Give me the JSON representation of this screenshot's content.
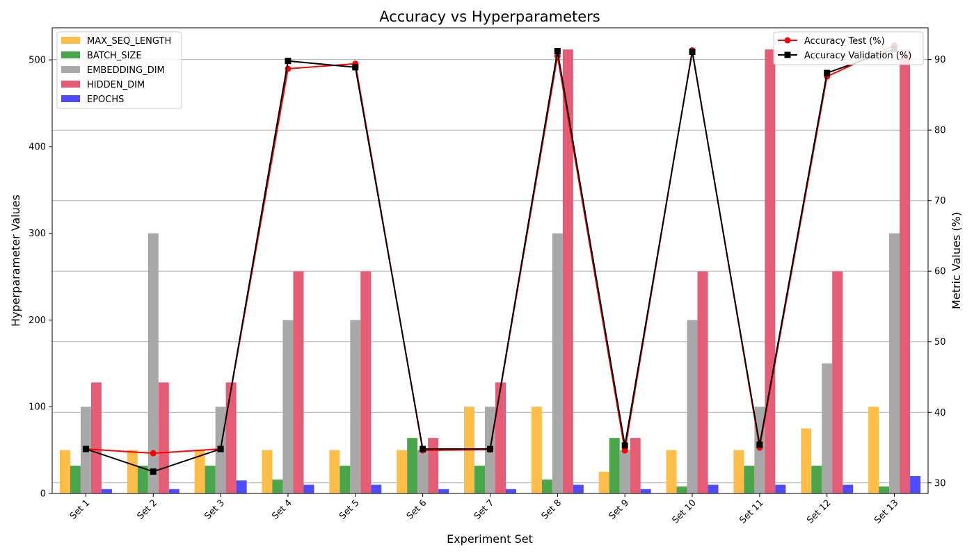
{
  "chart_data": {
    "type": "bar",
    "title": "Accuracy vs Hyperparameters",
    "xlabel": "Experiment Set",
    "ylabel_left": "Hyperparameter Values",
    "ylabel_right": "Metric Values (%)",
    "categories": [
      "Set 1",
      "Set 2",
      "Set 3",
      "Set 4",
      "Set 5",
      "Set 6",
      "Set 7",
      "Set 8",
      "Set 9",
      "Set 10",
      "Set 11",
      "Set 12",
      "Set 13"
    ],
    "ylim_left": [
      0,
      537
    ],
    "ylim_right": [
      28.5,
      94.5
    ],
    "yticks_left": [
      0,
      100,
      200,
      300,
      400,
      500
    ],
    "yticks_right": [
      30,
      40,
      50,
      60,
      70,
      80,
      90
    ],
    "grid": "right-axis horizontal",
    "bar_series": [
      {
        "name": "MAX_SEQ_LENGTH",
        "color": "#FFBE4A",
        "values": [
          50,
          50,
          50,
          50,
          50,
          50,
          100,
          100,
          25,
          50,
          50,
          75,
          100
        ]
      },
      {
        "name": "BATCH_SIZE",
        "color": "#4BA64B",
        "values": [
          32,
          32,
          32,
          16,
          32,
          64,
          32,
          16,
          64,
          8,
          32,
          32,
          8
        ]
      },
      {
        "name": "EMBEDDING_DIM",
        "color": "#A8A8A8",
        "values": [
          100,
          300,
          100,
          200,
          200,
          50,
          100,
          300,
          50,
          200,
          100,
          150,
          300
        ]
      },
      {
        "name": "HIDDEN_DIM",
        "color": "#E55C76",
        "values": [
          128,
          128,
          128,
          256,
          256,
          64,
          128,
          512,
          64,
          256,
          512,
          256,
          512
        ]
      },
      {
        "name": "EPOCHS",
        "color": "#4D4DFF",
        "values": [
          5,
          5,
          15,
          10,
          10,
          5,
          5,
          10,
          5,
          10,
          10,
          10,
          20
        ]
      }
    ],
    "line_series": [
      {
        "name": "Accuracy Test (%)",
        "color": "#FF0000",
        "marker": "circle",
        "values": [
          34.8,
          34.2,
          34.8,
          88.7,
          89.4,
          34.6,
          34.7,
          90.5,
          34.6,
          91.3,
          35.0,
          87.6,
          92.0
        ]
      },
      {
        "name": "Accuracy Validation (%)",
        "color": "#000000",
        "marker": "square",
        "values": [
          34.8,
          31.6,
          34.8,
          89.8,
          88.9,
          34.8,
          34.8,
          91.2,
          35.3,
          91.1,
          35.4,
          88.1,
          91.5
        ]
      }
    ],
    "legend_left_position": "top-left",
    "legend_right_position": "top-right"
  }
}
